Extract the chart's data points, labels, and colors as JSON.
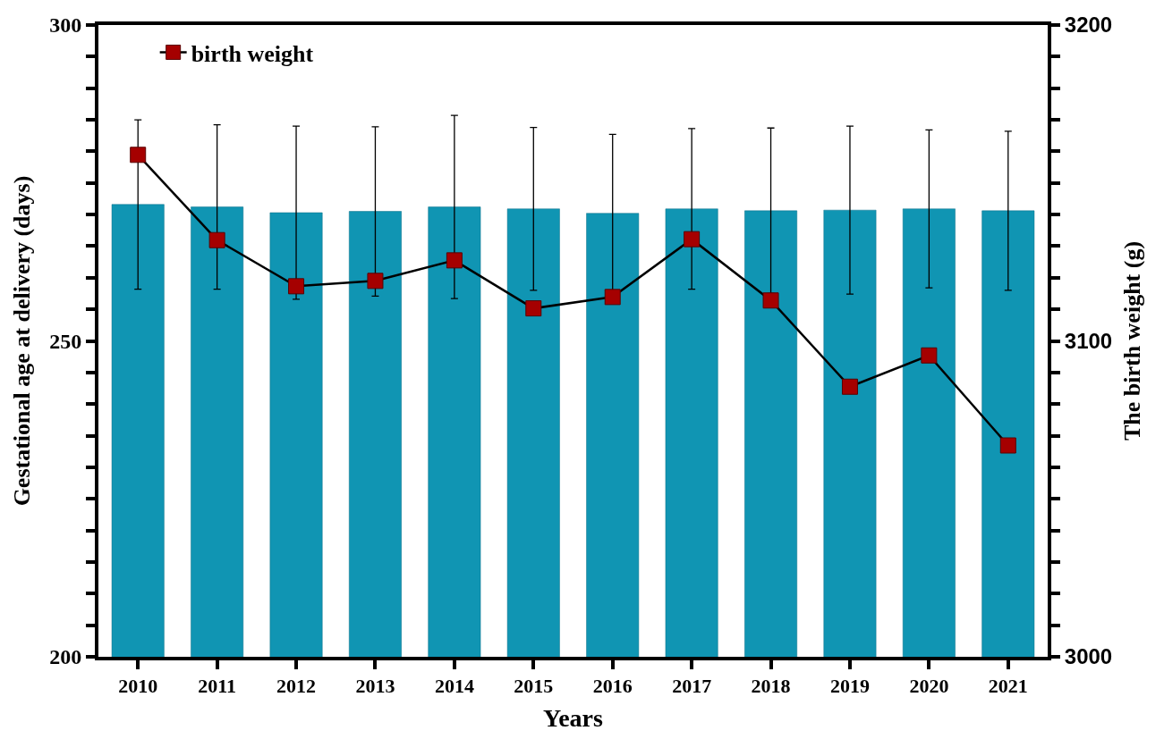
{
  "chart_data": {
    "type": "bar",
    "xlabel": "Years",
    "ylabel": "Gestational age at delivery (days)",
    "y2label": "The birth weight (g)",
    "categories": [
      "2010",
      "2011",
      "2012",
      "2013",
      "2014",
      "2015",
      "2016",
      "2017",
      "2018",
      "2019",
      "2020",
      "2021"
    ],
    "series": [
      {
        "color": "#1095b3",
        "values": [
          271.6,
          271.2,
          270.3,
          270.5,
          271.2,
          270.9,
          270.2,
          270.9,
          270.6,
          270.7,
          270.9,
          270.6
        ],
        "errors": [
          13.4,
          13.0,
          13.7,
          13.4,
          14.5,
          12.9,
          12.5,
          12.7,
          13.1,
          13.3,
          12.5,
          12.6
        ]
      },
      {
        "type": "line",
        "name": "birth weight",
        "axis": "y2",
        "color": "#a50000",
        "marker": "square",
        "values": [
          3158.9,
          3131.9,
          3117.3,
          3119.0,
          3125.5,
          3110.3,
          3113.9,
          3132.2,
          3112.8,
          3085.5,
          3095.4,
          3066.9
        ]
      }
    ],
    "ylim": [
      200,
      300
    ],
    "yticks": [
      200,
      {
        "value": 205,
        "label": null
      },
      {
        "value": 210,
        "label": null
      },
      {
        "value": 215,
        "label": null
      },
      {
        "value": 220,
        "label": null
      },
      {
        "value": 225,
        "label": null
      },
      {
        "value": 230,
        "label": null
      },
      {
        "value": 235,
        "label": null
      },
      {
        "value": 240,
        "label": null
      },
      {
        "value": 245,
        "label": null
      },
      250,
      {
        "value": 255,
        "label": null
      },
      {
        "value": 260,
        "label": null
      },
      {
        "value": 265,
        "label": null
      },
      {
        "value": 270,
        "label": null
      },
      {
        "value": 275,
        "label": null
      },
      {
        "value": 280,
        "label": null
      },
      {
        "value": 285,
        "label": null
      },
      {
        "value": 290,
        "label": null
      },
      {
        "value": 295,
        "label": null
      },
      300
    ],
    "y2lim": [
      3000,
      3200
    ],
    "y2ticks": [
      3000,
      {
        "value": 3010,
        "label": null
      },
      {
        "value": 3020,
        "label": null
      },
      {
        "value": 3030,
        "label": null
      },
      {
        "value": 3040,
        "label": null
      },
      {
        "value": 3050,
        "label": null
      },
      {
        "value": 3060,
        "label": null
      },
      {
        "value": 3070,
        "label": null
      },
      {
        "value": 3080,
        "label": null
      },
      {
        "value": 3090,
        "label": null
      },
      3100,
      {
        "value": 3110,
        "label": null
      },
      {
        "value": 3120,
        "label": null
      },
      {
        "value": 3130,
        "label": null
      },
      {
        "value": 3140,
        "label": null
      },
      {
        "value": 3150,
        "label": null
      },
      {
        "value": 3160,
        "label": null
      },
      {
        "value": 3170,
        "label": null
      },
      {
        "value": 3180,
        "label": null
      },
      {
        "value": 3190,
        "label": null
      },
      3200
    ],
    "legend": "top left",
    "line_style": "solid"
  }
}
